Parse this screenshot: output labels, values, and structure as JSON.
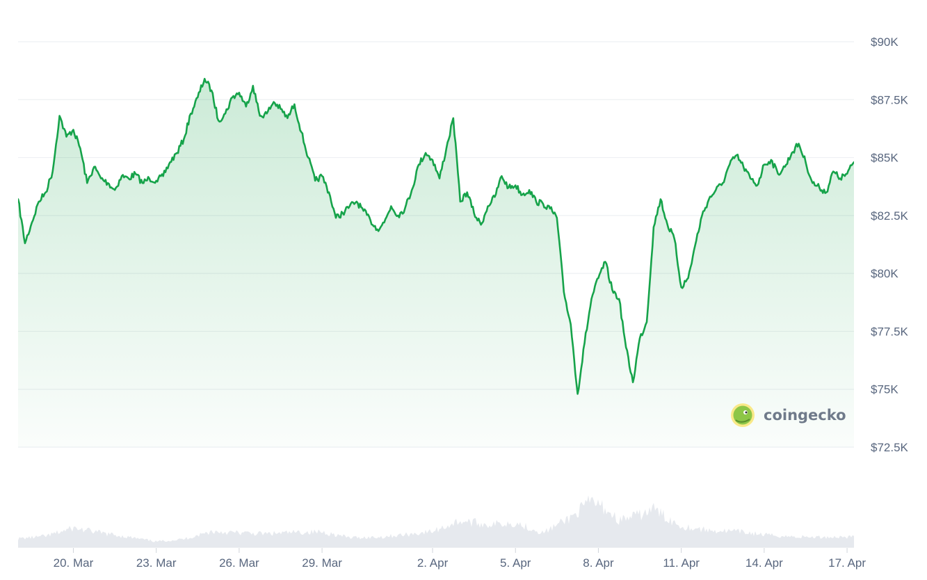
{
  "chart_data": {
    "type": "line",
    "title": "",
    "xlabel": "",
    "ylabel": "",
    "x_start": "2025-03-18",
    "x_end": "2025-04-17",
    "ylim": [
      72500,
      90000
    ],
    "y_ticks": [
      {
        "value": 90000,
        "label": "$90K"
      },
      {
        "value": 87500,
        "label": "$87.5K"
      },
      {
        "value": 85000,
        "label": "$85K"
      },
      {
        "value": 82500,
        "label": "$82.5K"
      },
      {
        "value": 80000,
        "label": "$80K"
      },
      {
        "value": 77500,
        "label": "$77.5K"
      },
      {
        "value": 75000,
        "label": "$75K"
      },
      {
        "value": 72500,
        "label": "$72.5K"
      }
    ],
    "x_ticks": [
      {
        "date": "2025-03-20",
        "label": "20. Mar"
      },
      {
        "date": "2025-03-23",
        "label": "23. Mar"
      },
      {
        "date": "2025-03-26",
        "label": "26. Mar"
      },
      {
        "date": "2025-03-29",
        "label": "29. Mar"
      },
      {
        "date": "2025-04-02",
        "label": "2. Apr"
      },
      {
        "date": "2025-04-05",
        "label": "5. Apr"
      },
      {
        "date": "2025-04-08",
        "label": "8. Apr"
      },
      {
        "date": "2025-04-11",
        "label": "11. Apr"
      },
      {
        "date": "2025-04-14",
        "label": "14. Apr"
      },
      {
        "date": "2025-04-17",
        "label": "17. Apr"
      }
    ],
    "grid": true,
    "series": [
      {
        "color": "#16a34a",
        "points": [
          [
            "2025-03-18T00:00",
            83200
          ],
          [
            "2025-03-18T06:00",
            81300
          ],
          [
            "2025-03-18T12:00",
            82200
          ],
          [
            "2025-03-18T18:00",
            83100
          ],
          [
            "2025-03-19T00:00",
            83500
          ],
          [
            "2025-03-19T06:00",
            84400
          ],
          [
            "2025-03-19T12:00",
            86800
          ],
          [
            "2025-03-19T18:00",
            85900
          ],
          [
            "2025-03-20T00:00",
            86200
          ],
          [
            "2025-03-20T06:00",
            85400
          ],
          [
            "2025-03-20T12:00",
            83900
          ],
          [
            "2025-03-20T18:00",
            84600
          ],
          [
            "2025-03-21T00:00",
            84100
          ],
          [
            "2025-03-21T06:00",
            83900
          ],
          [
            "2025-03-21T12:00",
            83600
          ],
          [
            "2025-03-21T18:00",
            84200
          ],
          [
            "2025-03-22T00:00",
            84100
          ],
          [
            "2025-03-22T06:00",
            84300
          ],
          [
            "2025-03-22T12:00",
            83900
          ],
          [
            "2025-03-22T18:00",
            84100
          ],
          [
            "2025-03-23T00:00",
            84000
          ],
          [
            "2025-03-23T06:00",
            84200
          ],
          [
            "2025-03-23T12:00",
            84800
          ],
          [
            "2025-03-23T18:00",
            85200
          ],
          [
            "2025-03-24T00:00",
            85800
          ],
          [
            "2025-03-24T06:00",
            86900
          ],
          [
            "2025-03-24T12:00",
            87600
          ],
          [
            "2025-03-24T18:00",
            88400
          ],
          [
            "2025-03-25T00:00",
            87900
          ],
          [
            "2025-03-25T06:00",
            86600
          ],
          [
            "2025-03-25T12:00",
            86900
          ],
          [
            "2025-03-25T18:00",
            87600
          ],
          [
            "2025-03-26T00:00",
            87800
          ],
          [
            "2025-03-26T06:00",
            87200
          ],
          [
            "2025-03-26T12:00",
            88100
          ],
          [
            "2025-03-26T18:00",
            86800
          ],
          [
            "2025-03-27T00:00",
            86900
          ],
          [
            "2025-03-27T06:00",
            87400
          ],
          [
            "2025-03-27T12:00",
            87100
          ],
          [
            "2025-03-27T18:00",
            86700
          ],
          [
            "2025-03-28T00:00",
            87300
          ],
          [
            "2025-03-28T06:00",
            86100
          ],
          [
            "2025-03-28T12:00",
            85000
          ],
          [
            "2025-03-28T18:00",
            84000
          ],
          [
            "2025-03-29T00:00",
            84200
          ],
          [
            "2025-03-29T06:00",
            83500
          ],
          [
            "2025-03-29T12:00",
            82400
          ],
          [
            "2025-03-29T18:00",
            82600
          ],
          [
            "2025-03-30T00:00",
            82900
          ],
          [
            "2025-03-30T06:00",
            83100
          ],
          [
            "2025-03-30T12:00",
            82700
          ],
          [
            "2025-03-30T18:00",
            82300
          ],
          [
            "2025-03-31T00:00",
            81900
          ],
          [
            "2025-03-31T06:00",
            82200
          ],
          [
            "2025-03-31T12:00",
            82900
          ],
          [
            "2025-03-31T18:00",
            82500
          ],
          [
            "2025-04-01T00:00",
            82800
          ],
          [
            "2025-04-01T06:00",
            83600
          ],
          [
            "2025-04-01T12:00",
            84700
          ],
          [
            "2025-04-01T18:00",
            85200
          ],
          [
            "2025-04-02T00:00",
            84900
          ],
          [
            "2025-04-02T06:00",
            84100
          ],
          [
            "2025-04-02T12:00",
            85400
          ],
          [
            "2025-04-02T18:00",
            86700
          ],
          [
            "2025-04-03T00:00",
            83100
          ],
          [
            "2025-04-03T06:00",
            83500
          ],
          [
            "2025-04-03T12:00",
            82600
          ],
          [
            "2025-04-03T18:00",
            82100
          ],
          [
            "2025-04-04T00:00",
            82900
          ],
          [
            "2025-04-04T06:00",
            83300
          ],
          [
            "2025-04-04T12:00",
            84200
          ],
          [
            "2025-04-04T18:00",
            83700
          ],
          [
            "2025-04-05T00:00",
            83800
          ],
          [
            "2025-04-05T06:00",
            83400
          ],
          [
            "2025-04-05T12:00",
            83600
          ],
          [
            "2025-04-05T18:00",
            83100
          ],
          [
            "2025-04-06T00:00",
            83000
          ],
          [
            "2025-04-06T06:00",
            82800
          ],
          [
            "2025-04-06T12:00",
            82400
          ],
          [
            "2025-04-06T18:00",
            79200
          ],
          [
            "2025-04-07T00:00",
            77800
          ],
          [
            "2025-04-07T06:00",
            74800
          ],
          [
            "2025-04-07T12:00",
            77000
          ],
          [
            "2025-04-07T18:00",
            78900
          ],
          [
            "2025-04-08T00:00",
            79800
          ],
          [
            "2025-04-08T06:00",
            80500
          ],
          [
            "2025-04-08T12:00",
            79300
          ],
          [
            "2025-04-08T18:00",
            78900
          ],
          [
            "2025-04-09T00:00",
            76800
          ],
          [
            "2025-04-09T06:00",
            75300
          ],
          [
            "2025-04-09T12:00",
            77200
          ],
          [
            "2025-04-09T18:00",
            77900
          ],
          [
            "2025-04-10T00:00",
            82000
          ],
          [
            "2025-04-10T06:00",
            83200
          ],
          [
            "2025-04-10T12:00",
            82100
          ],
          [
            "2025-04-10T18:00",
            81500
          ],
          [
            "2025-04-11T00:00",
            79400
          ],
          [
            "2025-04-11T06:00",
            79800
          ],
          [
            "2025-04-11T12:00",
            81200
          ],
          [
            "2025-04-11T18:00",
            82500
          ],
          [
            "2025-04-12T00:00",
            83200
          ],
          [
            "2025-04-12T06:00",
            83600
          ],
          [
            "2025-04-12T12:00",
            83900
          ],
          [
            "2025-04-12T18:00",
            84700
          ],
          [
            "2025-04-13T00:00",
            85100
          ],
          [
            "2025-04-13T06:00",
            84600
          ],
          [
            "2025-04-13T12:00",
            84100
          ],
          [
            "2025-04-13T18:00",
            83800
          ],
          [
            "2025-04-14T00:00",
            84700
          ],
          [
            "2025-04-14T06:00",
            84900
          ],
          [
            "2025-04-14T12:00",
            84300
          ],
          [
            "2025-04-14T18:00",
            84600
          ],
          [
            "2025-04-15T00:00",
            85200
          ],
          [
            "2025-04-15T06:00",
            85600
          ],
          [
            "2025-04-15T12:00",
            84800
          ],
          [
            "2025-04-15T18:00",
            83900
          ],
          [
            "2025-04-16T00:00",
            83700
          ],
          [
            "2025-04-16T06:00",
            83500
          ],
          [
            "2025-04-16T12:00",
            84400
          ],
          [
            "2025-04-16T18:00",
            84100
          ],
          [
            "2025-04-17T00:00",
            84300
          ],
          [
            "2025-04-17T06:00",
            84800
          ]
        ]
      }
    ],
    "volume_series": [
      [
        "2025-03-18T00:00",
        0.18
      ],
      [
        "2025-03-19T00:00",
        0.23
      ],
      [
        "2025-03-20T00:00",
        0.4
      ],
      [
        "2025-03-21T00:00",
        0.3
      ],
      [
        "2025-03-22T00:00",
        0.21
      ],
      [
        "2025-03-23T00:00",
        0.12
      ],
      [
        "2025-03-24T00:00",
        0.17
      ],
      [
        "2025-03-25T00:00",
        0.33
      ],
      [
        "2025-03-26T00:00",
        0.3
      ],
      [
        "2025-03-27T00:00",
        0.28
      ],
      [
        "2025-03-28T00:00",
        0.31
      ],
      [
        "2025-03-29T00:00",
        0.32
      ],
      [
        "2025-03-30T00:00",
        0.2
      ],
      [
        "2025-03-31T00:00",
        0.21
      ],
      [
        "2025-04-01T00:00",
        0.26
      ],
      [
        "2025-04-02T00:00",
        0.33
      ],
      [
        "2025-04-03T00:00",
        0.55
      ],
      [
        "2025-04-04T00:00",
        0.47
      ],
      [
        "2025-04-05T00:00",
        0.51
      ],
      [
        "2025-04-06T00:00",
        0.3
      ],
      [
        "2025-04-07T00:00",
        0.62
      ],
      [
        "2025-04-07T18:00",
        0.96
      ],
      [
        "2025-04-08T06:00",
        0.8
      ],
      [
        "2025-04-08T18:00",
        0.56
      ],
      [
        "2025-04-09T12:00",
        0.67
      ],
      [
        "2025-04-10T00:00",
        0.8
      ],
      [
        "2025-04-10T12:00",
        0.6
      ],
      [
        "2025-04-11T00:00",
        0.44
      ],
      [
        "2025-04-12T00:00",
        0.35
      ],
      [
        "2025-04-13T00:00",
        0.33
      ],
      [
        "2025-04-14T00:00",
        0.26
      ],
      [
        "2025-04-15T00:00",
        0.22
      ],
      [
        "2025-04-16T00:00",
        0.21
      ],
      [
        "2025-04-17T06:00",
        0.22
      ]
    ]
  },
  "watermark": {
    "text": "coingecko",
    "logo_icon": "gecko-logo-icon",
    "logo_color": "#8dc647"
  }
}
